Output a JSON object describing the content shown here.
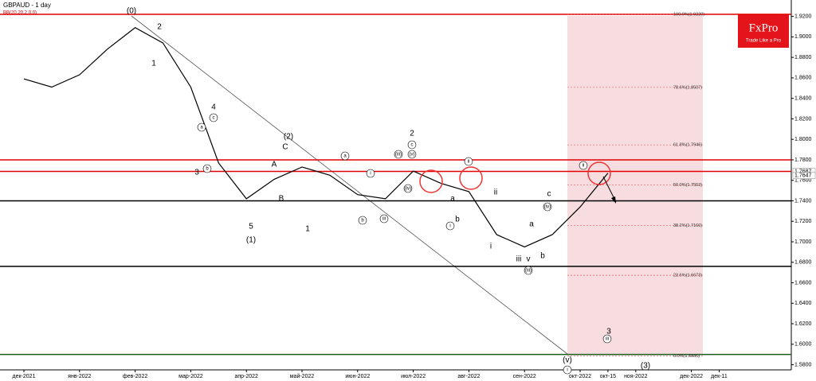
{
  "chart_data": {
    "type": "line",
    "title": "GBPAUD - 1 day",
    "subtitle": "BB(20,20,2,0,0)",
    "categories": [
      "дек-2021",
      null,
      "янв-2022",
      null,
      "фев-2022",
      null,
      "мар-2022",
      null,
      "апр-2022",
      null,
      "май-2022",
      null,
      "июн-2022",
      null,
      "июл-2022",
      null,
      "авг-2022",
      null,
      "сен-2022",
      null,
      "окт-2022",
      "окт-15",
      "ноя-2022",
      null,
      "дек-2022",
      "дек-11"
    ],
    "series": [
      {
        "color": "#000000",
        "values": [
          1.859,
          1.851,
          1.863,
          1.888,
          1.909,
          1.894,
          1.851,
          1.777,
          1.742,
          1.761,
          1.773,
          1.765,
          1.746,
          1.742,
          1.769,
          1.757,
          1.749,
          1.707,
          1.695,
          1.707,
          1.734,
          1.767,
          null,
          null,
          null,
          null
        ]
      }
    ],
    "ylim": [
      1.575,
      1.936
    ],
    "yticks": [
      {
        "value": 1.58,
        "label": "1.5800"
      },
      {
        "value": 1.6,
        "label": "1.6000"
      },
      {
        "value": 1.62,
        "label": "1.6200"
      },
      {
        "value": 1.64,
        "label": "1.6400"
      },
      {
        "value": 1.66,
        "label": "1.6600"
      },
      {
        "value": 1.68,
        "label": "1.6800"
      },
      {
        "value": 1.7,
        "label": "1.7000"
      },
      {
        "value": 1.72,
        "label": "1.7200"
      },
      {
        "value": 1.74,
        "label": "1.7400"
      },
      {
        "value": 1.76,
        "label": "1.7600"
      },
      {
        "value": 1.78,
        "label": "1.7800"
      },
      {
        "value": 1.8,
        "label": "1.8000"
      },
      {
        "value": 1.82,
        "label": "1.8200"
      },
      {
        "value": 1.84,
        "label": "1.8400"
      },
      {
        "value": 1.86,
        "label": "1.8600"
      },
      {
        "value": 1.88,
        "label": "1.8800"
      },
      {
        "value": 1.9,
        "label": "1.9000"
      },
      {
        "value": 1.92,
        "label": "1.9200"
      }
    ],
    "grid": false,
    "levels": [
      {
        "value": 1.922,
        "color": "#e00000"
      },
      {
        "value": 1.78,
        "color": "#e00000"
      },
      {
        "value": 1.7687,
        "color": "#e00000"
      },
      {
        "value": 1.74,
        "color": "#000000"
      },
      {
        "value": 1.676,
        "color": "#000000"
      },
      {
        "value": 1.59,
        "color": "#1a5e1a"
      }
    ],
    "fib_levels": [
      {
        "value": 1.922,
        "label": "100.0%(1.9220)"
      },
      {
        "value": 1.8507,
        "label": "78.6%(1.8507)"
      },
      {
        "value": 1.7946,
        "label": "61.8%(1.7946)"
      },
      {
        "value": 1.7553,
        "label": "50.0%(1.7553)"
      },
      {
        "value": 1.716,
        "label": "38.2%(1.7160)"
      },
      {
        "value": 1.6673,
        "label": "23.6%(1.6673)"
      },
      {
        "value": 1.5886,
        "label": "0.0%(1.5886)"
      }
    ],
    "price_labels": [
      1.7687,
      1.7647
    ],
    "annotations": [
      "(0)",
      "2",
      "1",
      "4",
      "c",
      "a",
      "3",
      "b",
      "(2)",
      "C",
      "A",
      "B",
      "5",
      "(1)",
      "1",
      "a",
      "i",
      "b",
      "iii",
      "(iii)",
      "2",
      "c",
      "(v)",
      "(iv)",
      "ii",
      "a",
      "b",
      "i",
      "ii",
      "c",
      "(iv)",
      "i",
      "a",
      "iii",
      "v",
      "(iii)",
      "b",
      "ii",
      "3",
      "iii",
      "(v)",
      "i",
      "(3)"
    ]
  },
  "logo": {
    "name": "FxPro",
    "tagline": "Trade Like a Pro"
  }
}
